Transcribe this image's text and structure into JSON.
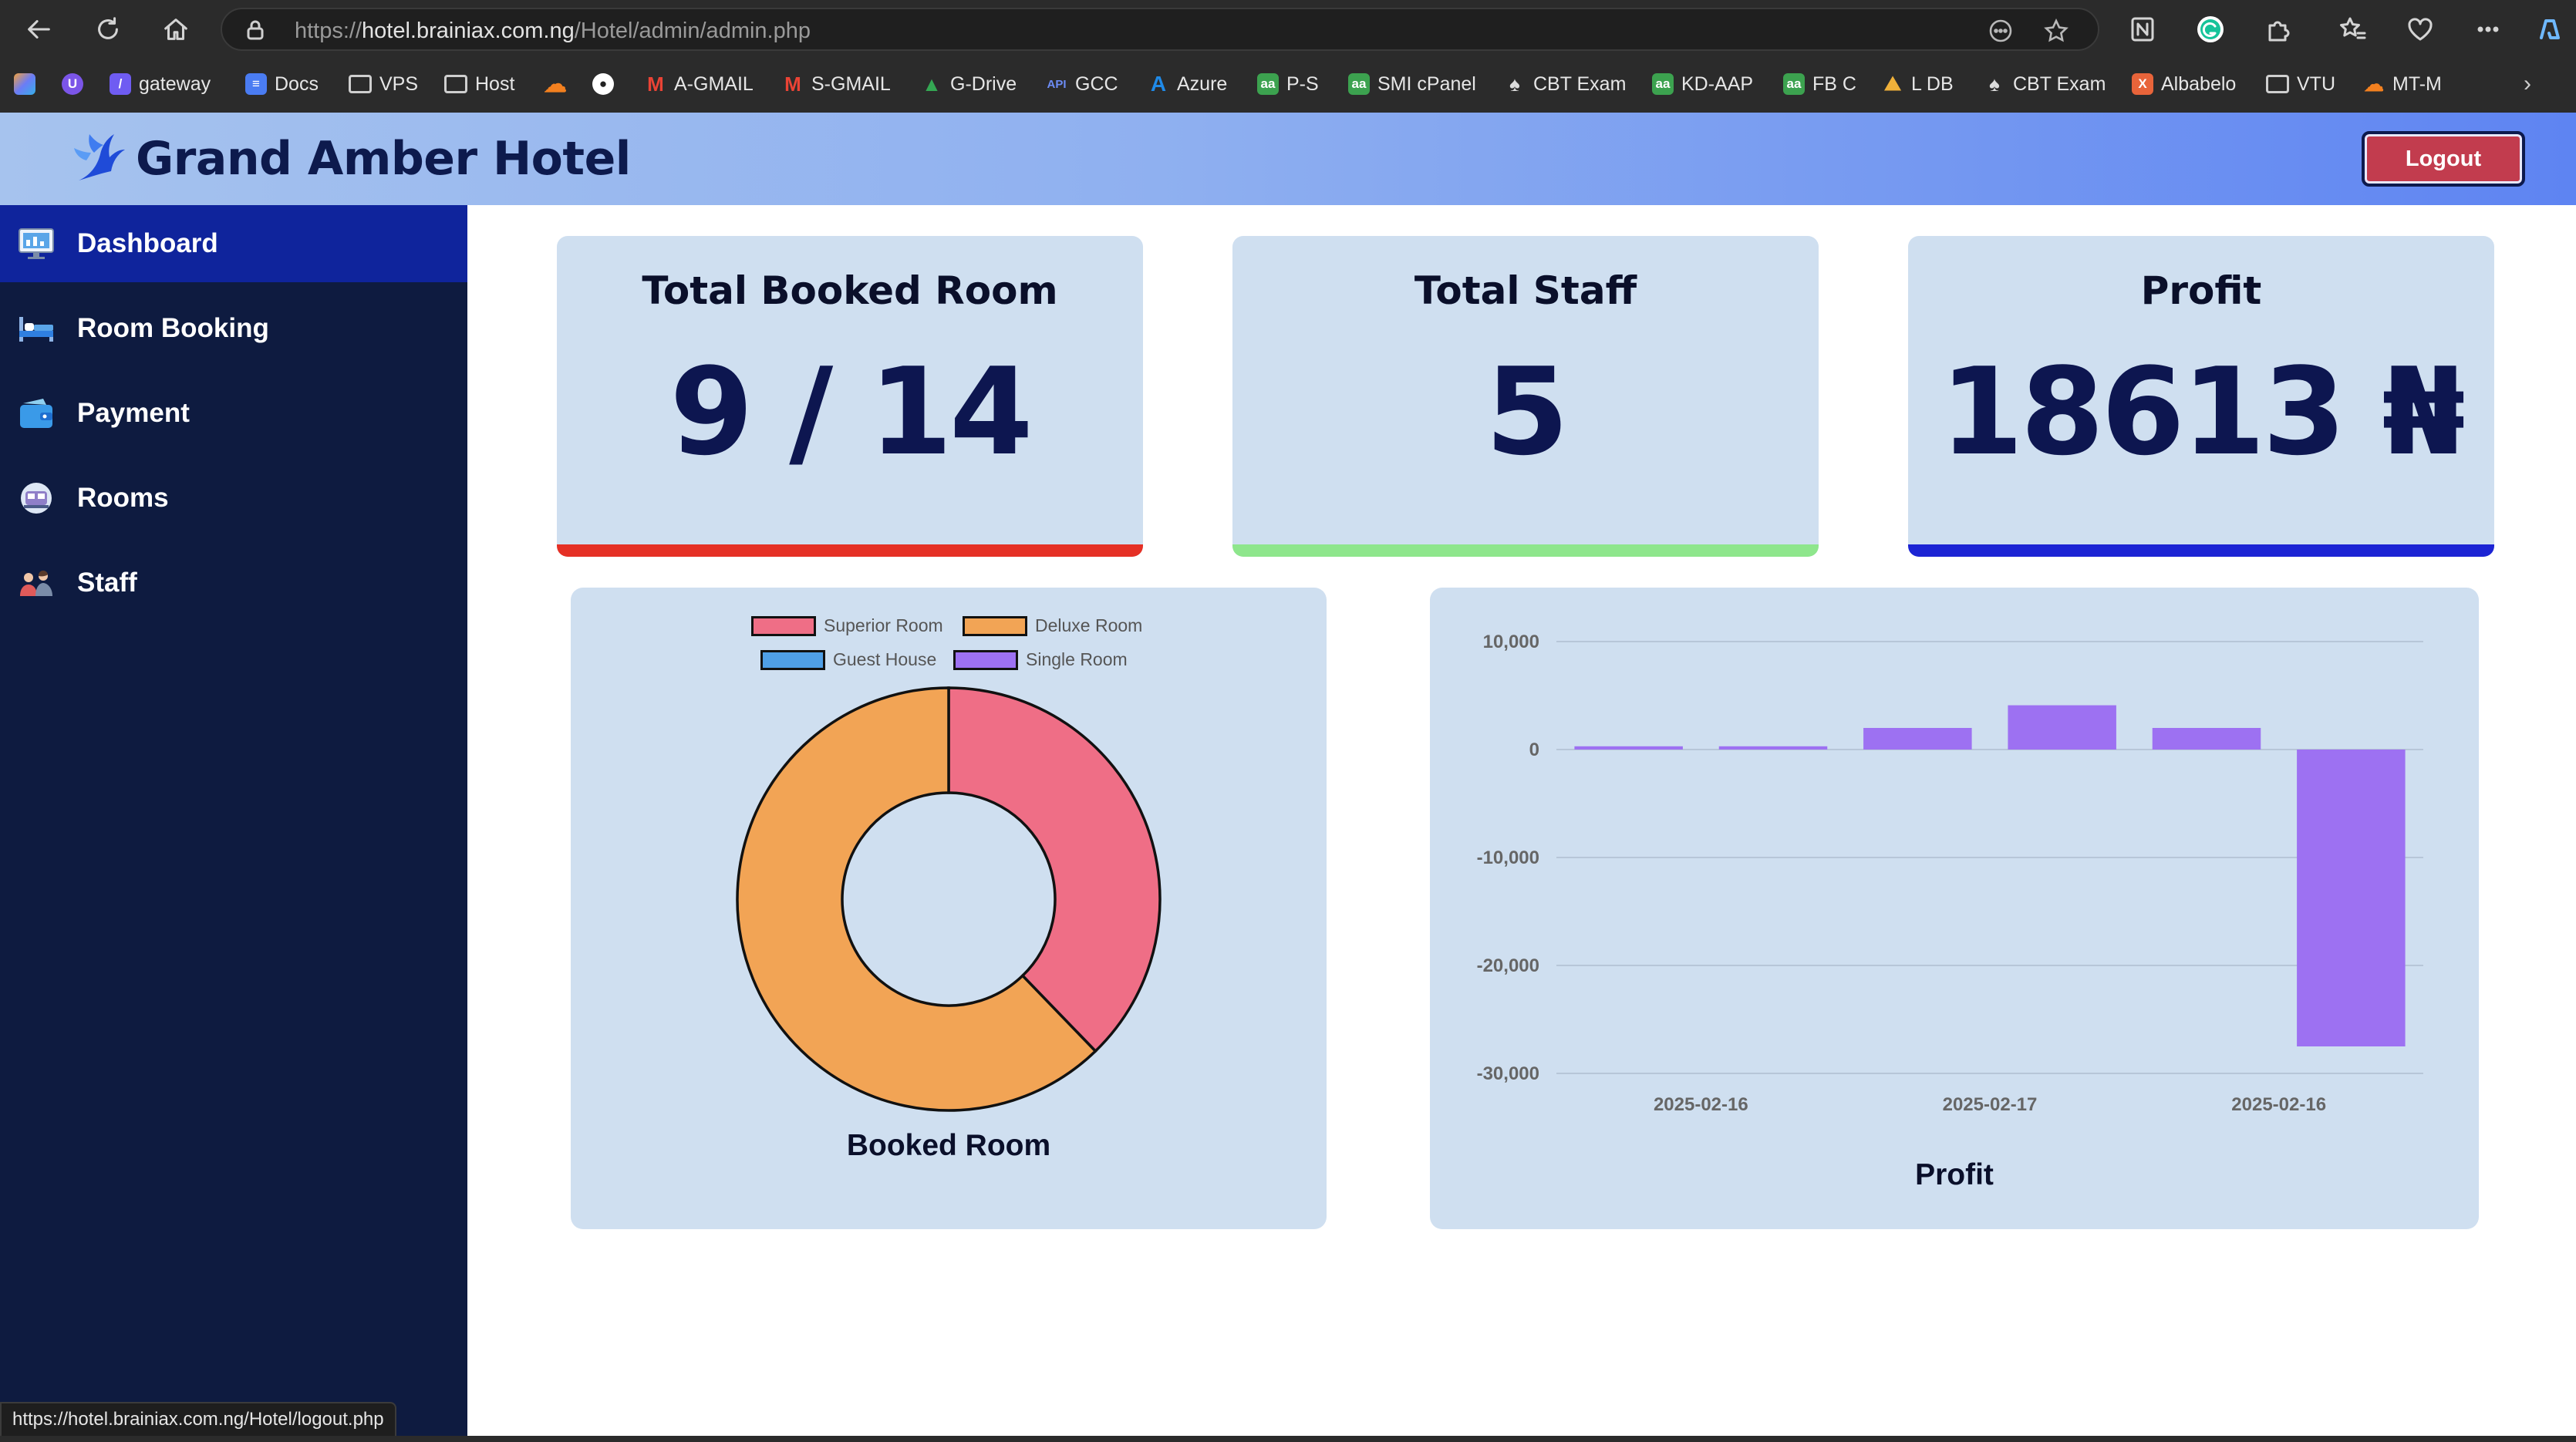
{
  "browser": {
    "url_prefix": "https://",
    "url_host": "hotel.brainiax.com.ng",
    "url_path": "/Hotel/admin/admin.php",
    "bookmarks": [
      {
        "label": "gateway",
        "icon": "feather-icon",
        "color": "#6f5cf2"
      },
      {
        "label": "Docs",
        "icon": "docs-icon",
        "color": "#4a7cf2"
      },
      {
        "label": "VPS",
        "icon": "folder-icon",
        "color": ""
      },
      {
        "label": "Host",
        "icon": "folder-icon",
        "color": ""
      },
      {
        "label": "",
        "icon": "cloudflare-icon",
        "color": "#f3801f"
      },
      {
        "label": "",
        "icon": "github-icon",
        "color": "#ffffff"
      },
      {
        "label": "A-GMAIL",
        "icon": "gmail-icon",
        "color": "#ea4335"
      },
      {
        "label": "S-GMAIL",
        "icon": "gmail-icon",
        "color": "#ea4335"
      },
      {
        "label": "G-Drive",
        "icon": "drive-icon",
        "color": "#34a853"
      },
      {
        "label": "GCC",
        "icon": "api-icon",
        "color": "#4a7cf2"
      },
      {
        "label": "Azure",
        "icon": "azure-icon",
        "color": "#1f8ae8"
      },
      {
        "label": "P-S",
        "icon": "aa-icon",
        "color": "#3ca24f"
      },
      {
        "label": "SMI cPanel",
        "icon": "aa-icon",
        "color": "#3ca24f"
      },
      {
        "label": "CBT Exam",
        "icon": "badge-icon",
        "color": "#dcdcdc"
      },
      {
        "label": "KD-AAP",
        "icon": "aa-icon",
        "color": "#3ca24f"
      },
      {
        "label": "FB C",
        "icon": "aa-icon",
        "color": "#3ca24f"
      },
      {
        "label": "L DB",
        "icon": "mountain-icon",
        "color": "#f0b13a"
      },
      {
        "label": "CBT Exam",
        "icon": "badge-icon",
        "color": "#dcdcdc"
      },
      {
        "label": "Albabelo",
        "icon": "albabelo-icon",
        "color": "#e8643a"
      },
      {
        "label": "VTU",
        "icon": "folder-icon",
        "color": ""
      },
      {
        "label": "MT-M",
        "icon": "cloudflare-icon",
        "color": "#f3801f"
      }
    ],
    "status_url": "https://hotel.brainiax.com.ng/Hotel/logout.php"
  },
  "header": {
    "brand_name": "Grand Amber Hotel",
    "logout_label": "Logout"
  },
  "sidebar": {
    "items": [
      {
        "label": "Dashboard",
        "icon": "dashboard-icon",
        "active": true
      },
      {
        "label": "Room Booking",
        "icon": "bed-icon",
        "active": false
      },
      {
        "label": "Payment",
        "icon": "wallet-icon",
        "active": false
      },
      {
        "label": "Rooms",
        "icon": "rooms-icon",
        "active": false
      },
      {
        "label": "Staff",
        "icon": "staff-icon",
        "active": false
      }
    ]
  },
  "cards": [
    {
      "title": "Total Booked Room",
      "value": "9 / 14",
      "accent": "#e53025"
    },
    {
      "title": "Total Staff",
      "value": "5",
      "accent": "#8ee68c"
    },
    {
      "title": "Profit",
      "value": "18613 ₦",
      "accent": "#1c24d4"
    }
  ],
  "chart_data": [
    {
      "type": "pie",
      "title": "Booked Room",
      "legend": "top",
      "categories": [
        "Superior Room",
        "Deluxe Room",
        "Guest House",
        "Single Room"
      ],
      "values": [
        3.4,
        5.6,
        0,
        0
      ],
      "colors": [
        "#ef6e86",
        "#f2a455",
        "#4f9fe6",
        "#9d71f2"
      ]
    },
    {
      "type": "bar",
      "title": "Profit",
      "categories": [
        "2025-02-16",
        "2025-02-16",
        "2025-02-17",
        "2025-02-17",
        "2025-02-16",
        "2025-02-16"
      ],
      "tick_labels": [
        "2025-02-16",
        "2025-02-17",
        "2025-02-16"
      ],
      "values": [
        300,
        300,
        2000,
        4100,
        2000,
        -27500
      ],
      "ylim": [
        -30000,
        10000
      ],
      "yticks": [
        10000,
        0,
        -10000,
        -20000,
        -30000
      ],
      "ytick_labels": [
        "10,000",
        "0",
        "-10,000",
        "-20,000",
        "-30,000"
      ],
      "grid": true,
      "color": "#9d71f2"
    }
  ]
}
